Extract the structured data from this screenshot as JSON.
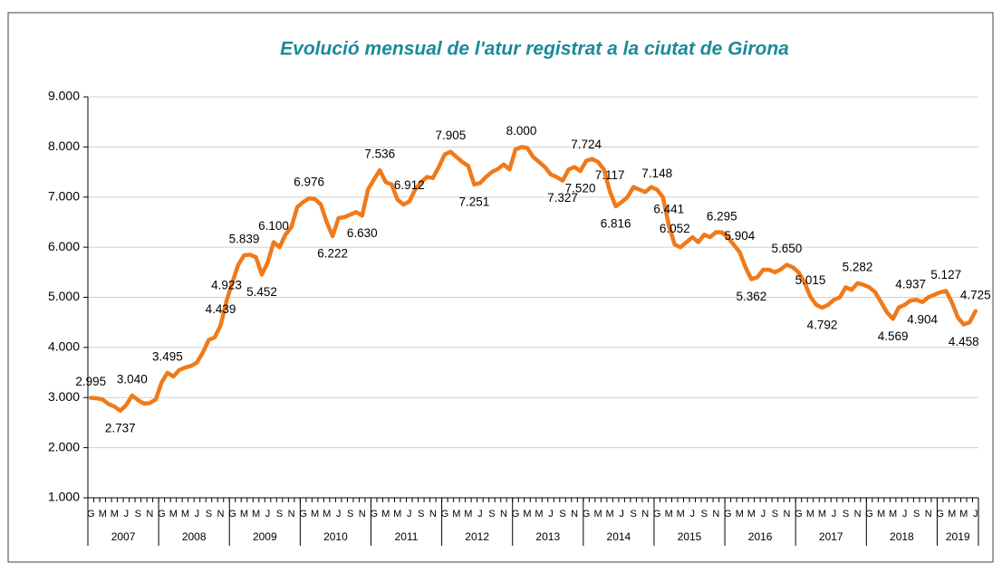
{
  "chart_data": {
    "type": "line",
    "title": "Evolució mensual de l'atur registrat a la ciutat de Girona",
    "categories": [
      "G",
      null,
      "M",
      null,
      "M",
      null,
      "J",
      null,
      "S",
      null,
      "N",
      null,
      "G",
      null,
      "M",
      null,
      "M",
      null,
      "J",
      null,
      "S",
      null,
      "N",
      null,
      "G",
      null,
      "M",
      null,
      "M",
      null,
      "J",
      null,
      "S",
      null,
      "N",
      null,
      "G",
      null,
      "M",
      null,
      "M",
      null,
      "J",
      null,
      "S",
      null,
      "N",
      null,
      "G",
      null,
      "M",
      null,
      "M",
      null,
      "J",
      null,
      "S",
      null,
      "N",
      null,
      "G",
      null,
      "M",
      null,
      "M",
      null,
      "J",
      null,
      "S",
      null,
      "N",
      null,
      "G",
      null,
      "M",
      null,
      "M",
      null,
      "J",
      null,
      "S",
      null,
      "N",
      null,
      "G",
      null,
      "M",
      null,
      "M",
      null,
      "J",
      null,
      "S",
      null,
      "N",
      null,
      "G",
      null,
      "M",
      null,
      "M",
      null,
      "J",
      null,
      "S",
      null,
      "N",
      null,
      "G",
      null,
      "M",
      null,
      "M",
      null,
      "J",
      null,
      "S",
      null,
      "N",
      null,
      "G",
      null,
      "M",
      null,
      "M",
      null,
      "J",
      null,
      "S",
      null,
      "N",
      null,
      "G",
      null,
      "M",
      null,
      "M",
      null,
      "J",
      null,
      "S",
      null,
      "N",
      null,
      "G",
      null,
      "M",
      null,
      "M",
      null,
      "J"
    ],
    "year_labels": [
      "2007",
      "2008",
      "2009",
      "2010",
      "2011",
      "2012",
      "2013",
      "2014",
      "2015",
      "2016",
      "2017",
      "2018",
      "2019"
    ],
    "color": "#f07a1a",
    "values": [
      2995,
      2985,
      2960,
      2870,
      2820,
      2737,
      2850,
      3040,
      2950,
      2880,
      2890,
      2960,
      3300,
      3495,
      3420,
      3550,
      3600,
      3630,
      3700,
      3900,
      4150,
      4200,
      4439,
      4923,
      5300,
      5650,
      5839,
      5850,
      5800,
      5452,
      5700,
      6100,
      6000,
      6250,
      6400,
      6800,
      6900,
      6976,
      6960,
      6850,
      6500,
      6222,
      6580,
      6600,
      6650,
      6700,
      6630,
      7150,
      7350,
      7536,
      7300,
      7250,
      6950,
      6850,
      6912,
      7150,
      7300,
      7400,
      7380,
      7600,
      7850,
      7905,
      7800,
      7700,
      7620,
      7251,
      7280,
      7400,
      7500,
      7560,
      7650,
      7550,
      7950,
      8000,
      7980,
      7800,
      7700,
      7600,
      7450,
      7400,
      7327,
      7550,
      7600,
      7520,
      7724,
      7760,
      7700,
      7550,
      7117,
      6816,
      6900,
      7000,
      7200,
      7150,
      7100,
      7200,
      7148,
      7000,
      6441,
      6052,
      6000,
      6100,
      6200,
      6100,
      6250,
      6200,
      6300,
      6295,
      6200,
      6050,
      5904,
      5600,
      5362,
      5400,
      5550,
      5550,
      5500,
      5560,
      5650,
      5600,
      5500,
      5300,
      5015,
      4850,
      4792,
      4850,
      4950,
      5000,
      5200,
      5150,
      5282,
      5250,
      5200,
      5100,
      4900,
      4700,
      4569,
      4800,
      4850,
      4937,
      4950,
      4904,
      5000,
      5050,
      5100,
      5127,
      4900,
      4600,
      4458,
      4500,
      4725
    ],
    "value_labels": [
      "2.995",
      null,
      null,
      null,
      null,
      "2.737",
      null,
      "3.040",
      null,
      null,
      null,
      null,
      null,
      "3.495",
      null,
      null,
      null,
      null,
      null,
      null,
      null,
      null,
      "4.439",
      "4.923",
      null,
      null,
      "5.839",
      null,
      null,
      "5.452",
      null,
      "6.100",
      null,
      null,
      null,
      null,
      null,
      "6.976",
      null,
      null,
      null,
      "6.222",
      null,
      null,
      null,
      null,
      "6.630",
      null,
      null,
      "7.536",
      null,
      null,
      null,
      null,
      "6.912",
      null,
      null,
      null,
      null,
      null,
      null,
      "7.905",
      null,
      null,
      null,
      "7.251",
      null,
      null,
      null,
      null,
      null,
      null,
      null,
      "8.000",
      null,
      null,
      null,
      null,
      null,
      null,
      "7.327",
      null,
      null,
      "7.520",
      "7.724",
      null,
      null,
      null,
      "7.117",
      "6.816",
      null,
      null,
      null,
      null,
      null,
      null,
      "7.148",
      null,
      "6.441",
      "6.052",
      null,
      null,
      null,
      null,
      null,
      null,
      null,
      "6.295",
      null,
      null,
      "5.904",
      null,
      "5.362",
      null,
      null,
      null,
      null,
      null,
      "5.650",
      null,
      null,
      null,
      "5.015",
      null,
      "4.792",
      null,
      null,
      null,
      null,
      null,
      "5.282",
      null,
      null,
      null,
      null,
      null,
      "4.569",
      null,
      null,
      "4.937",
      null,
      "4.904",
      null,
      null,
      null,
      "5.127",
      null,
      null,
      "4.458",
      null,
      "4.725"
    ],
    "ylim": [
      1000,
      9000
    ],
    "yticks": [
      {
        "value": 1000,
        "label": "1.000"
      },
      {
        "value": 2000,
        "label": "2.000"
      },
      {
        "value": 3000,
        "label": "3.000"
      },
      {
        "value": 4000,
        "label": "4.000"
      },
      {
        "value": 5000,
        "label": "5.000"
      },
      {
        "value": 6000,
        "label": "6.000"
      },
      {
        "value": 7000,
        "label": "7.000"
      },
      {
        "value": 8000,
        "label": "8.000"
      },
      {
        "value": 9000,
        "label": "9.000"
      }
    ],
    "grid": true
  }
}
